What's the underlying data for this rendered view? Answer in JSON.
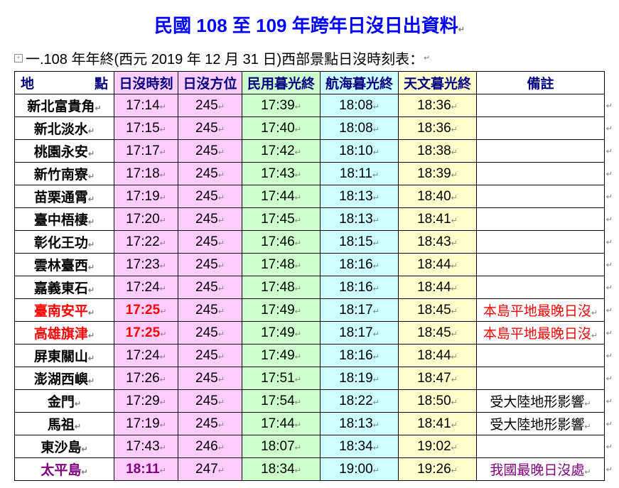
{
  "title": "民國 108 至 109 年跨年日沒日出資料",
  "title_suffix_mark": "↵",
  "subtitle": "一.108 年年終(西元 2019 年 12 月 31 日)西部景點日沒時刻表：",
  "subtitle_suffix_mark": "↵",
  "columns": [
    "地點",
    "日沒時刻",
    "日沒方位",
    "民用暮光終",
    "航海暮光終",
    "天文暮光終",
    "備註"
  ],
  "column_bg": [
    "",
    "bg-pink",
    "bg-pink",
    "bg-green",
    "bg-blue",
    "bg-yell",
    ""
  ],
  "rows": [
    {
      "loc": "新北富貴角",
      "v": [
        "17:14",
        "245",
        "17:39",
        "18:08",
        "18:36"
      ],
      "note": ""
    },
    {
      "loc": "新北淡水",
      "v": [
        "17:15",
        "245",
        "17:40",
        "18:08",
        "18:36"
      ],
      "note": ""
    },
    {
      "loc": "桃園永安",
      "v": [
        "17:17",
        "245",
        "17:42",
        "18:10",
        "18:38"
      ],
      "note": ""
    },
    {
      "loc": "新竹南寮",
      "v": [
        "17:18",
        "245",
        "17:43",
        "18:11",
        "18:39"
      ],
      "note": ""
    },
    {
      "loc": "苗栗通霄",
      "v": [
        "17:19",
        "245",
        "17:44",
        "18:13",
        "18:40"
      ],
      "note": ""
    },
    {
      "loc": "臺中梧棲",
      "v": [
        "17:20",
        "245",
        "17:45",
        "18:13",
        "18:41"
      ],
      "note": ""
    },
    {
      "loc": "彰化王功",
      "v": [
        "17:22",
        "245",
        "17:46",
        "18:15",
        "18:43"
      ],
      "note": ""
    },
    {
      "loc": "雲林臺西",
      "v": [
        "17:23",
        "245",
        "17:48",
        "18:16",
        "18:44"
      ],
      "note": ""
    },
    {
      "loc": "嘉義東石",
      "v": [
        "17:24",
        "245",
        "17:48",
        "18:16",
        "18:44"
      ],
      "note": ""
    },
    {
      "loc": "臺南安平",
      "loc_style": "red",
      "v": [
        "17:25",
        "245",
        "17:49",
        "18:17",
        "18:45"
      ],
      "v0_style": "redbold",
      "note": "本島平地最晚日沒",
      "note_style": "red"
    },
    {
      "loc": "高雄旗津",
      "loc_style": "red",
      "v": [
        "17:25",
        "245",
        "17:49",
        "18:17",
        "18:45"
      ],
      "v0_style": "redbold",
      "note": "本島平地最晚日沒",
      "note_style": "red"
    },
    {
      "loc": "屏東關山",
      "v": [
        "17:24",
        "245",
        "17:49",
        "18:16",
        "18:44"
      ],
      "note": ""
    },
    {
      "loc": "澎湖西嶼",
      "v": [
        "17:26",
        "245",
        "17:51",
        "18:19",
        "18:47"
      ],
      "note": ""
    },
    {
      "loc": "金門",
      "v": [
        "17:29",
        "245",
        "17:54",
        "18:22",
        "18:50"
      ],
      "note": "受大陸地形影響"
    },
    {
      "loc": "馬祖",
      "v": [
        "17:19",
        "245",
        "17:44",
        "18:13",
        "18:41"
      ],
      "note": "受大陸地形影響"
    },
    {
      "loc": "東沙島",
      "v": [
        "17:43",
        "246",
        "18:07",
        "18:34",
        "19:02"
      ],
      "note": ""
    },
    {
      "loc": "太平島",
      "loc_style": "purple",
      "v": [
        "18:11",
        "247",
        "18:34",
        "19:00",
        "19:26"
      ],
      "v0_style": "purplebold",
      "note": "我國最晚日沒處",
      "note_style": "purple"
    }
  ],
  "return_mark": "↵",
  "colors": {
    "title": "#0000ff",
    "header_text": "#000080",
    "red": "#ff0000",
    "purple": "#800080",
    "pink_bg": "#ffccff",
    "green_bg": "#ccffcc",
    "blue_bg": "#ccffff",
    "yellow_bg": "#ffffcc"
  }
}
